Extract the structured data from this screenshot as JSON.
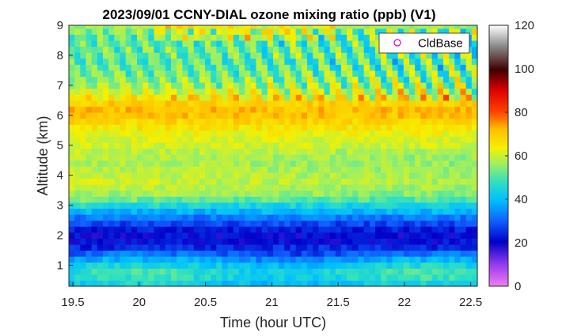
{
  "chart_data": {
    "type": "heatmap",
    "title": "2023/09/01 CCNY-DIAL ozone mixing ratio (ppb) (V1)",
    "xlabel": "Time (hour UTC)",
    "ylabel": "Altitude (km)",
    "xlim": [
      19.47,
      22.55
    ],
    "ylim": [
      0.3,
      9.0
    ],
    "xticks": [
      "19.5",
      "20",
      "20.5",
      "21",
      "21.5",
      "22",
      "22.5"
    ],
    "xtick_values": [
      19.5,
      20,
      20.5,
      21,
      21.5,
      22,
      22.5
    ],
    "yticks": [
      "1",
      "2",
      "3",
      "4",
      "5",
      "6",
      "7",
      "8",
      "9"
    ],
    "ytick_values": [
      1,
      2,
      3,
      4,
      5,
      6,
      7,
      8,
      9
    ],
    "colorbar": {
      "min": 0,
      "max": 120,
      "ticks": [
        "0",
        "20",
        "40",
        "60",
        "80",
        "100",
        "120"
      ],
      "tick_values": [
        0,
        20,
        40,
        60,
        80,
        100,
        120
      ]
    },
    "legend": {
      "label": "CldBase",
      "marker": "circle",
      "color": "#cc00cc",
      "placement": "top-right"
    },
    "profile_altitude_km": [
      0.3,
      0.5,
      0.7,
      0.9,
      1.1,
      1.3,
      1.5,
      1.7,
      1.9,
      2.1,
      2.3,
      2.5,
      2.7,
      2.9,
      3.1,
      3.3,
      3.5,
      3.7,
      3.9,
      4.1,
      4.3,
      4.5,
      4.7,
      4.9,
      5.1,
      5.3,
      5.5,
      5.7,
      5.9,
      6.1,
      6.3,
      6.5,
      6.7,
      6.9,
      7.1,
      7.3,
      7.5,
      7.7,
      7.9,
      8.1,
      8.3,
      8.5,
      8.7,
      8.9
    ],
    "profile_ozone_ppb": [
      40,
      44,
      47,
      45,
      40,
      33,
      26,
      22,
      20,
      21,
      24,
      30,
      35,
      43,
      50,
      56,
      58,
      60,
      60,
      59,
      58,
      58,
      59,
      60,
      61,
      62,
      64,
      67,
      70,
      72,
      71,
      68,
      63,
      58,
      55,
      53,
      52,
      50,
      51,
      52,
      51,
      50,
      52,
      56
    ]
  }
}
